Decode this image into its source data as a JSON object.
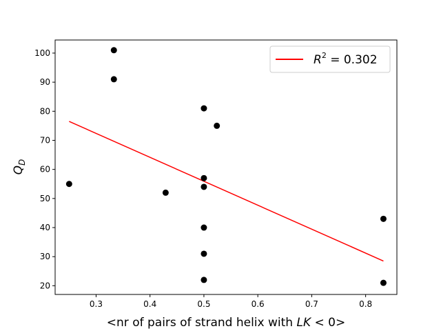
{
  "chart_data": {
    "type": "scatter",
    "xlabel": "<nr of pairs of strand helix with LK < 0>",
    "xlabel_parts": {
      "prefix": "<nr of pairs of strand helix with ",
      "math": "LK",
      "op": " < 0>"
    },
    "ylabel": "Q_D",
    "ylabel_parts": {
      "main": "Q",
      "sub": "D"
    },
    "xlim": [
      0.224,
      0.858
    ],
    "ylim": [
      17,
      104.5
    ],
    "xticks": [
      0.3,
      0.4,
      0.5,
      0.6,
      0.7,
      0.8
    ],
    "yticks": [
      20,
      30,
      40,
      50,
      60,
      70,
      80,
      90,
      100
    ],
    "grid": false,
    "legend_position": "upper right",
    "colors": {
      "points": "#000000",
      "fit_line": "#ff0000"
    },
    "points": [
      {
        "x": 0.25,
        "y": 55
      },
      {
        "x": 0.333,
        "y": 101
      },
      {
        "x": 0.333,
        "y": 91
      },
      {
        "x": 0.429,
        "y": 52
      },
      {
        "x": 0.5,
        "y": 81
      },
      {
        "x": 0.5,
        "y": 57
      },
      {
        "x": 0.5,
        "y": 54
      },
      {
        "x": 0.5,
        "y": 40
      },
      {
        "x": 0.5,
        "y": 31
      },
      {
        "x": 0.5,
        "y": 22
      },
      {
        "x": 0.524,
        "y": 75
      },
      {
        "x": 0.833,
        "y": 43
      },
      {
        "x": 0.833,
        "y": 21
      }
    ],
    "fit_line": {
      "x": [
        0.25,
        0.833
      ],
      "y": [
        76.5,
        28.5
      ]
    },
    "legend": {
      "label_math": "R",
      "label_sup": "2",
      "label_rest": " = 0.302"
    }
  }
}
